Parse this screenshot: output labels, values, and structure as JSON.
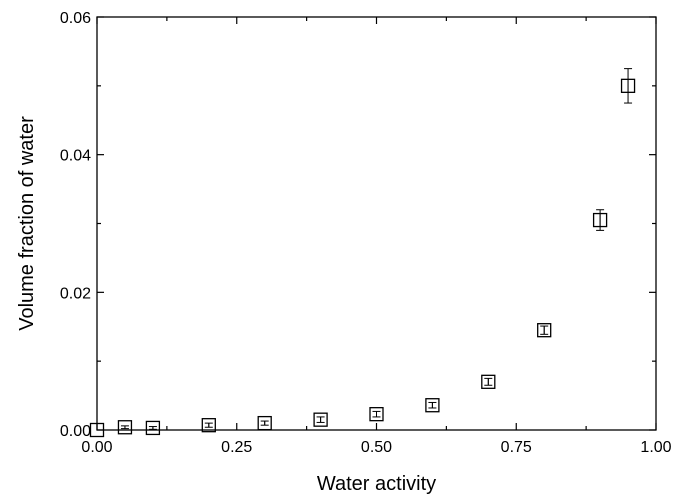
{
  "chart_data": {
    "type": "scatter",
    "title": "",
    "xlabel": "Water activity",
    "ylabel": "Volume fraction of water",
    "xlim": [
      0,
      1
    ],
    "ylim": [
      0,
      0.06
    ],
    "xticks": [
      "0.00",
      "0.25",
      "0.50",
      "0.75",
      "1.00"
    ],
    "yticks": [
      "0.00",
      "0.02",
      "0.04",
      "0.06"
    ],
    "grid": false,
    "marker": "open-square",
    "points": [
      {
        "x": 0.0,
        "y": 0.0,
        "err": 0.0
      },
      {
        "x": 0.05,
        "y": 0.0004,
        "err": 0.0002
      },
      {
        "x": 0.1,
        "y": 0.0003,
        "err": 0.0002
      },
      {
        "x": 0.2,
        "y": 0.0007,
        "err": 0.0003
      },
      {
        "x": 0.3,
        "y": 0.001,
        "err": 0.0003
      },
      {
        "x": 0.4,
        "y": 0.0015,
        "err": 0.0004
      },
      {
        "x": 0.5,
        "y": 0.0023,
        "err": 0.0004
      },
      {
        "x": 0.6,
        "y": 0.0036,
        "err": 0.0004
      },
      {
        "x": 0.7,
        "y": 0.007,
        "err": 0.0005
      },
      {
        "x": 0.8,
        "y": 0.0145,
        "err": 0.0006
      },
      {
        "x": 0.9,
        "y": 0.0305,
        "err": 0.0015
      },
      {
        "x": 0.95,
        "y": 0.05,
        "err": 0.0025
      }
    ]
  }
}
